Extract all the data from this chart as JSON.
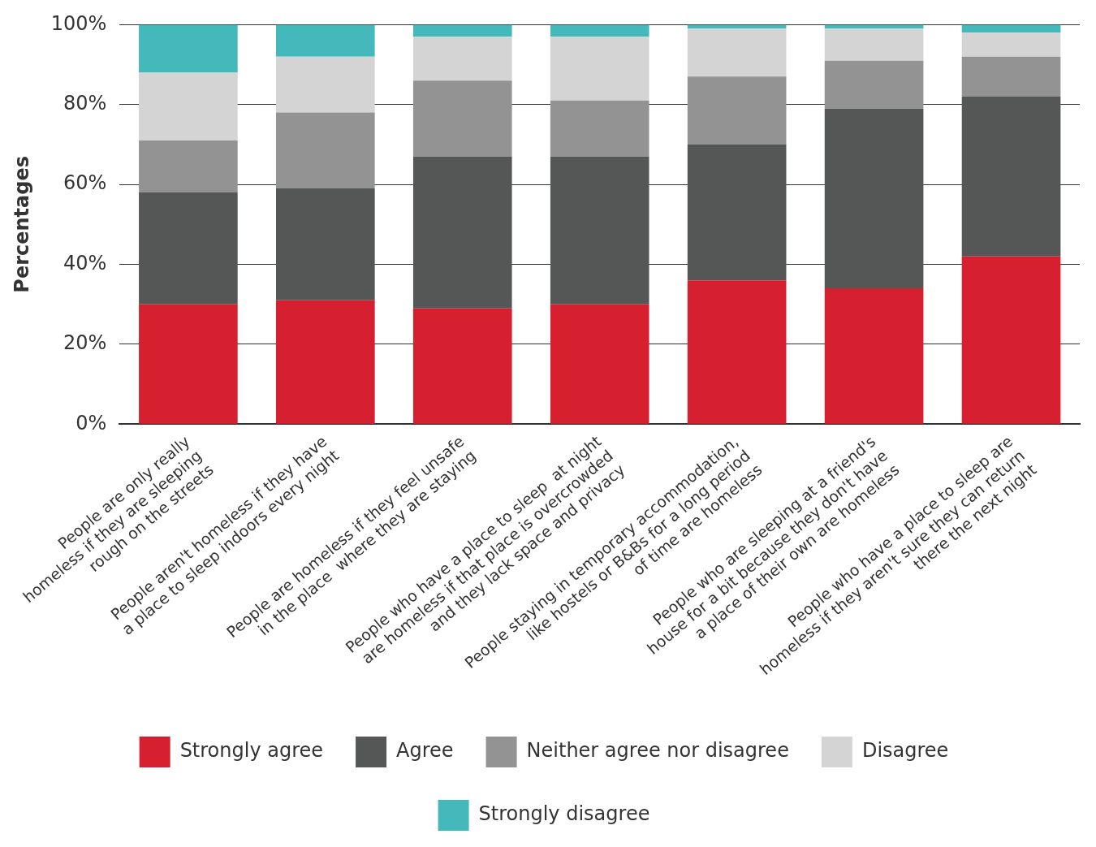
{
  "chart_data": {
    "type": "bar",
    "stacked": true,
    "ylabel": "Percentages",
    "categories": [
      "People are only really\nhomeless if they are sleeping\nrough on the streets",
      "People aren't homeless if they have\na place to sleep indoors every night",
      "People are homeless if they feel unsafe\nin the place  where they are staying",
      "People who have a place to sleep  at night\nare homeless if that place is overcrowded\nand they lack space and privacy",
      "People staying in temporary accommodation,\nlike hostels or B&Bs for a long period\nof time are homeless",
      "People who are sleeping at a friend's\nhouse for a bit because they don't have\na place of their own are homeless",
      "People who have a place to sleep are\nhomeless if they aren't sure they can return\nthere the next night"
    ],
    "series": [
      {
        "name": "Strongly agree",
        "color": "#d7202f",
        "values": [
          30,
          31,
          29,
          30,
          36,
          34,
          42
        ]
      },
      {
        "name": "Agree",
        "color": "#555756",
        "values": [
          28,
          28,
          38,
          37,
          34,
          45,
          40
        ]
      },
      {
        "name": "Neither agree nor disagree",
        "color": "#939393",
        "values": [
          13,
          19,
          19,
          14,
          17,
          12,
          10
        ]
      },
      {
        "name": "Disagree",
        "color": "#d4d4d4",
        "values": [
          17,
          14,
          11,
          16,
          12,
          8,
          6
        ]
      },
      {
        "name": "Strongly disagree",
        "color": "#44b9bb",
        "values": [
          12,
          8,
          3,
          3,
          1,
          1,
          2
        ]
      }
    ],
    "ylim": [
      0,
      100
    ],
    "yticks": [
      {
        "value": 0,
        "label": "0%"
      },
      {
        "value": 20,
        "label": "20%"
      },
      {
        "value": 40,
        "label": "40%"
      },
      {
        "value": 60,
        "label": "60%"
      },
      {
        "value": 80,
        "label": "80%"
      },
      {
        "value": 100,
        "label": "100%"
      }
    ],
    "grid": "y",
    "legend": "bottom"
  }
}
